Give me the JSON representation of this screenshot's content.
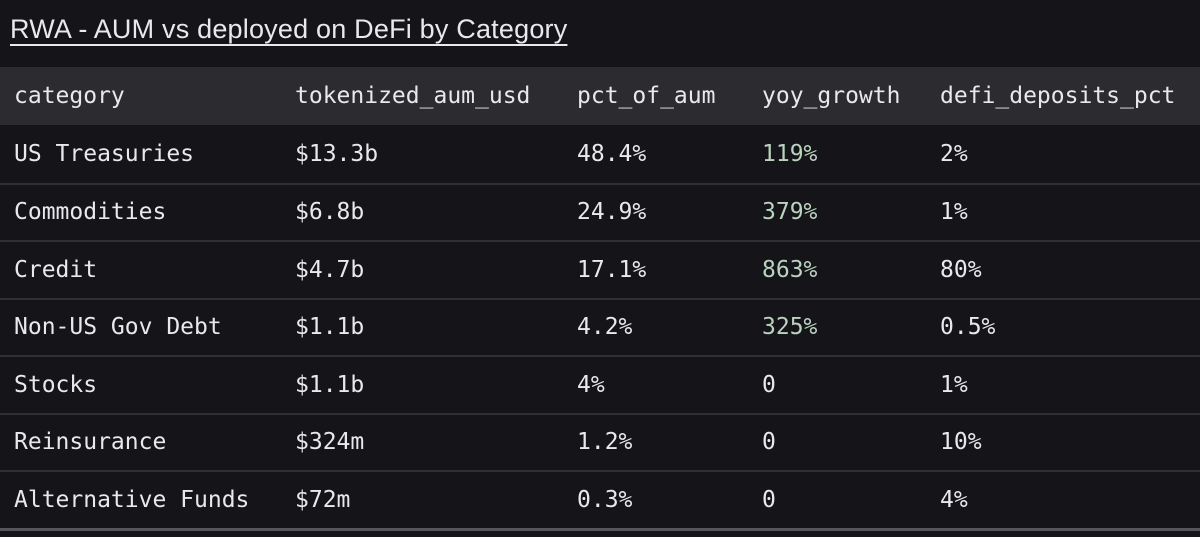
{
  "header": {
    "title": "RWA - AUM vs deployed on DeFi by Category"
  },
  "colors": {
    "bg": "#141419",
    "header_bg": "#2b2b30",
    "text": "#e9e9eb",
    "positive": "#bad3bf",
    "divider": "#2f2f36",
    "bottom_border": "#56565d"
  },
  "table": {
    "columns": [
      {
        "key": "category",
        "label": "category"
      },
      {
        "key": "tokenized_aum_usd",
        "label": "tokenized_aum_usd"
      },
      {
        "key": "pct_of_aum",
        "label": "pct_of_aum"
      },
      {
        "key": "yoy_growth",
        "label": "yoy_growth"
      },
      {
        "key": "defi_deposits_pct",
        "label": "defi_deposits_pct"
      }
    ],
    "rows": [
      {
        "category": "US Treasuries",
        "tokenized_aum_usd": "$13.3b",
        "pct_of_aum": "48.4%",
        "yoy_growth": "119%",
        "defi_deposits_pct": "2%",
        "yoy_growth_positive": true
      },
      {
        "category": "Commodities",
        "tokenized_aum_usd": "$6.8b",
        "pct_of_aum": "24.9%",
        "yoy_growth": "379%",
        "defi_deposits_pct": "1%",
        "yoy_growth_positive": true
      },
      {
        "category": "Credit",
        "tokenized_aum_usd": "$4.7b",
        "pct_of_aum": "17.1%",
        "yoy_growth": "863%",
        "defi_deposits_pct": "80%",
        "yoy_growth_positive": true
      },
      {
        "category": "Non-US Gov Debt",
        "tokenized_aum_usd": "$1.1b",
        "pct_of_aum": "4.2%",
        "yoy_growth": "325%",
        "defi_deposits_pct": "0.5%",
        "yoy_growth_positive": true
      },
      {
        "category": "Stocks",
        "tokenized_aum_usd": "$1.1b",
        "pct_of_aum": "4%",
        "yoy_growth": "0",
        "defi_deposits_pct": "1%",
        "yoy_growth_positive": false
      },
      {
        "category": "Reinsurance",
        "tokenized_aum_usd": "$324m",
        "pct_of_aum": "1.2%",
        "yoy_growth": "0",
        "defi_deposits_pct": "10%",
        "yoy_growth_positive": false
      },
      {
        "category": "Alternative Funds",
        "tokenized_aum_usd": "$72m",
        "pct_of_aum": "0.3%",
        "yoy_growth": "0",
        "defi_deposits_pct": "4%",
        "yoy_growth_positive": false
      }
    ]
  },
  "chart_data": {
    "type": "table",
    "title": "RWA - AUM vs deployed on DeFi by Category",
    "columns": [
      "category",
      "tokenized_aum_usd",
      "pct_of_aum",
      "yoy_growth",
      "defi_deposits_pct"
    ],
    "rows": [
      [
        "US Treasuries",
        "$13.3b",
        "48.4%",
        "119%",
        "2%"
      ],
      [
        "Commodities",
        "$6.8b",
        "24.9%",
        "379%",
        "1%"
      ],
      [
        "Credit",
        "$4.7b",
        "17.1%",
        "863%",
        "80%"
      ],
      [
        "Non-US Gov Debt",
        "$1.1b",
        "4.2%",
        "325%",
        "0.5%"
      ],
      [
        "Stocks",
        "$1.1b",
        "4%",
        "0",
        "1%"
      ],
      [
        "Reinsurance",
        "$324m",
        "1.2%",
        "0",
        "10%"
      ],
      [
        "Alternative Funds",
        "$72m",
        "0.3%",
        "0",
        "4%"
      ]
    ],
    "notes": "yoy_growth values greater than 0 are rendered in pale green; all other text is white on a near-black background"
  }
}
